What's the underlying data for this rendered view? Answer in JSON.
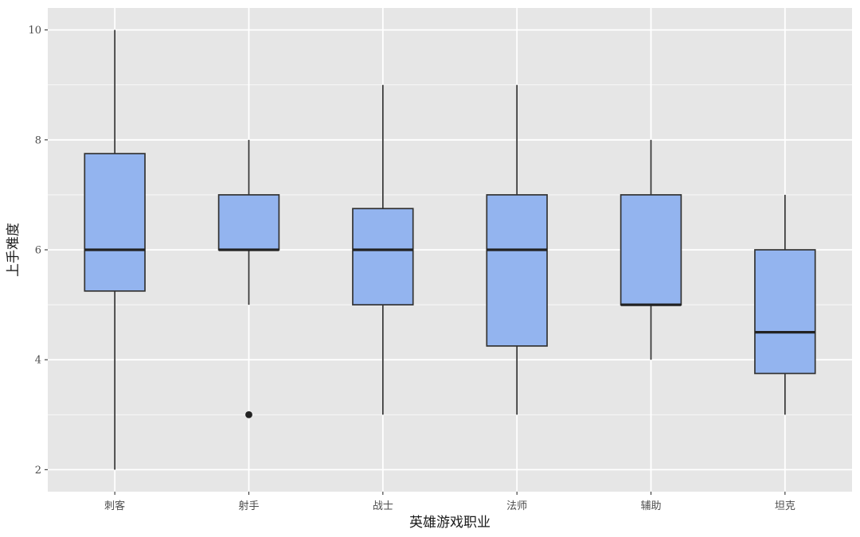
{
  "chart_data": {
    "type": "boxplot",
    "title": "",
    "xlabel": "英雄游戏职业",
    "ylabel": "上手难度",
    "ylim": [
      1.6,
      10.4
    ],
    "yticks": [
      2,
      4,
      6,
      8,
      10
    ],
    "categories": [
      "刺客",
      "射手",
      "战士",
      "法师",
      "辅助",
      "坦克"
    ],
    "boxes": [
      {
        "category": "刺客",
        "whisker_low": 2,
        "q1": 5.25,
        "median": 6,
        "q3": 7.75,
        "whisker_high": 10,
        "outliers": []
      },
      {
        "category": "射手",
        "whisker_low": 5,
        "q1": 6,
        "median": 6,
        "q3": 7,
        "whisker_high": 8,
        "outliers": [
          3
        ]
      },
      {
        "category": "战士",
        "whisker_low": 3,
        "q1": 5,
        "median": 6,
        "q3": 6.75,
        "whisker_high": 9,
        "outliers": []
      },
      {
        "category": "法师",
        "whisker_low": 3,
        "q1": 4.25,
        "median": 6,
        "q3": 7,
        "whisker_high": 9,
        "outliers": []
      },
      {
        "category": "辅助",
        "whisker_low": 4,
        "q1": 5,
        "median": 5,
        "q3": 7,
        "whisker_high": 8,
        "outliers": []
      },
      {
        "category": "坦克",
        "whisker_low": 3,
        "q1": 3.75,
        "median": 4.5,
        "q3": 6,
        "whisker_high": 7,
        "outliers": []
      }
    ],
    "grid": true,
    "legend": "none",
    "colors": {
      "panel": "#e6e6e6",
      "grid": "#ffffff",
      "box_fill": "#93b4ef",
      "box_stroke": "#333333",
      "median": "#222222",
      "whisker": "#333333",
      "outlier": "#222222"
    }
  }
}
